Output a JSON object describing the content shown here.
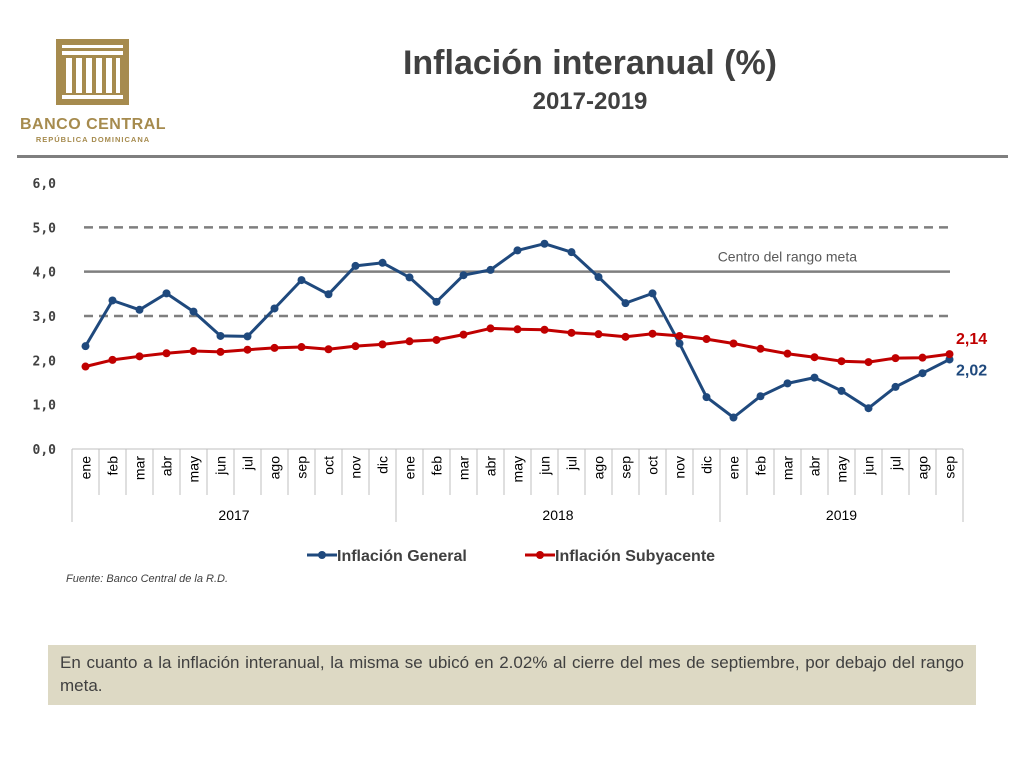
{
  "header": {
    "title": "Inflación interanual (%)",
    "subtitle": "2017-2019"
  },
  "logo": {
    "name": "BANCO CENTRAL",
    "subname": "REPÚBLICA DOMINICANA",
    "color": "#a68b4e"
  },
  "chart_data": {
    "type": "line",
    "categories": [
      "ene",
      "feb",
      "mar",
      "abr",
      "may",
      "jun",
      "jul",
      "ago",
      "sep",
      "oct",
      "nov",
      "dic",
      "ene",
      "feb",
      "mar",
      "abr",
      "may",
      "jun",
      "jul",
      "ago",
      "sep",
      "oct",
      "nov",
      "dic",
      "ene",
      "feb",
      "mar",
      "abr",
      "may",
      "jun",
      "jul",
      "ago",
      "sep"
    ],
    "year_groups": [
      {
        "label": "2017",
        "count": 12
      },
      {
        "label": "2018",
        "count": 12
      },
      {
        "label": "2019",
        "count": 9
      }
    ],
    "ylim": [
      0,
      6
    ],
    "yticks": [
      "0,0",
      "1,0",
      "2,0",
      "3,0",
      "4,0",
      "5,0",
      "6,0"
    ],
    "series": [
      {
        "name": "Inflación General",
        "color": "#1f497d",
        "values": [
          2.32,
          3.35,
          3.14,
          3.51,
          3.1,
          2.55,
          2.54,
          3.17,
          3.81,
          3.49,
          4.13,
          4.2,
          3.87,
          3.32,
          3.92,
          4.04,
          4.48,
          4.63,
          4.44,
          3.88,
          3.29,
          3.51,
          2.38,
          1.17,
          0.71,
          1.19,
          1.48,
          1.61,
          1.31,
          0.92,
          1.4,
          1.71,
          2.02
        ]
      },
      {
        "name": "Inflación Subyacente",
        "color": "#c00000",
        "values": [
          1.86,
          2.01,
          2.09,
          2.16,
          2.21,
          2.19,
          2.24,
          2.28,
          2.3,
          2.25,
          2.32,
          2.36,
          2.43,
          2.46,
          2.58,
          2.72,
          2.7,
          2.69,
          2.62,
          2.59,
          2.53,
          2.6,
          2.55,
          2.48,
          2.38,
          2.26,
          2.15,
          2.07,
          1.98,
          1.96,
          2.05,
          2.06,
          2.14
        ]
      }
    ],
    "reference_lines": [
      {
        "value": 5,
        "style": "dashed",
        "color": "#7f7f7f"
      },
      {
        "value": 4,
        "style": "solid",
        "color": "#7f7f7f",
        "label": "Centro del rango meta"
      },
      {
        "value": 3,
        "style": "dashed",
        "color": "#7f7f7f"
      }
    ],
    "end_labels": [
      {
        "text": "2,14",
        "color": "#c00000"
      },
      {
        "text": "2,02",
        "color": "#1f497d"
      }
    ],
    "legend_position": "bottom",
    "grid": false
  },
  "source": "Fuente: Banco Central de la R.D.",
  "note": "En cuanto a la inflación interanual, la misma se ubicó en 2.02% al cierre del mes de septiembre, por debajo del rango meta."
}
